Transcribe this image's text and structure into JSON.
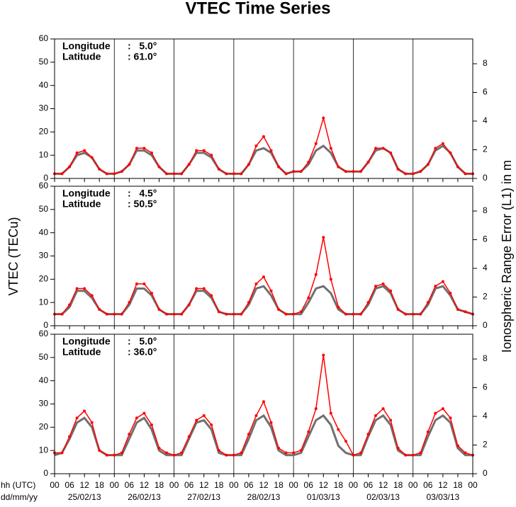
{
  "chart_data": [
    {
      "type": "line",
      "title": "VTEC Time Series",
      "annotations": [
        "Longitude",
        "Latitude"
      ],
      "annotation_values": [
        ":   5.0°",
        ": 61.0°"
      ],
      "xlim": [
        0,
        168
      ],
      "ylim": [
        0,
        60
      ],
      "yticks": [
        0,
        10,
        20,
        30,
        40,
        50,
        60
      ],
      "y2lim": [
        0,
        9.73
      ],
      "y2ticks": [
        0,
        2,
        4,
        6,
        8
      ],
      "xgrid": [
        24,
        48,
        72,
        96,
        120,
        144
      ],
      "x": [
        0,
        3,
        6,
        9,
        12,
        15,
        18,
        21,
        24,
        27,
        30,
        33,
        36,
        39,
        42,
        45,
        48,
        51,
        54,
        57,
        60,
        63,
        66,
        69,
        72,
        75,
        78,
        81,
        84,
        87,
        90,
        93,
        96,
        99,
        102,
        105,
        108,
        111,
        114,
        117,
        120,
        123,
        126,
        129,
        132,
        135,
        138,
        141,
        144,
        147,
        150,
        153,
        156,
        159,
        162,
        165,
        168
      ],
      "series": [
        {
          "color": "#707070",
          "values": [
            2,
            2,
            5,
            10,
            11,
            9,
            4,
            2,
            2,
            3,
            6,
            12,
            12,
            10,
            5,
            2,
            2,
            2,
            6,
            11,
            11,
            9,
            4,
            2,
            2,
            2,
            6,
            12,
            13,
            11,
            5,
            2,
            3,
            3,
            6,
            12,
            14,
            11,
            5,
            3,
            3,
            3,
            7,
            12,
            13,
            11,
            4,
            2,
            2,
            3,
            6,
            12,
            14,
            11,
            5,
            2,
            2
          ]
        },
        {
          "color": "#ff0000",
          "values": [
            2,
            2,
            5,
            11,
            12,
            9,
            4,
            2,
            2,
            3,
            6,
            13,
            13,
            11,
            5,
            2,
            2,
            2,
            6,
            12,
            12,
            10,
            4,
            2,
            2,
            2,
            6,
            14,
            18,
            12,
            5,
            2,
            3,
            3,
            7,
            15,
            26,
            13,
            5,
            3,
            3,
            3,
            7,
            13,
            13,
            11,
            4,
            2,
            2,
            3,
            6,
            13,
            15,
            11,
            5,
            2,
            2
          ]
        }
      ]
    },
    {
      "type": "line",
      "ylabel": "VTEC (TECu)",
      "y2label": "Ionospheric Range Error (L1) in m",
      "annotations": [
        "Longitude",
        "Latitude"
      ],
      "annotation_values": [
        ":   4.5°",
        ": 50.5°"
      ],
      "xlim": [
        0,
        168
      ],
      "ylim": [
        0,
        60
      ],
      "yticks": [
        0,
        10,
        20,
        30,
        40,
        50,
        60
      ],
      "y2lim": [
        0,
        9.73
      ],
      "y2ticks": [
        0,
        2,
        4,
        6,
        8
      ],
      "xgrid": [
        24,
        48,
        72,
        96,
        120,
        144
      ],
      "x": [
        0,
        3,
        6,
        9,
        12,
        15,
        18,
        21,
        24,
        27,
        30,
        33,
        36,
        39,
        42,
        45,
        48,
        51,
        54,
        57,
        60,
        63,
        66,
        69,
        72,
        75,
        78,
        81,
        84,
        87,
        90,
        93,
        96,
        99,
        102,
        105,
        108,
        111,
        114,
        117,
        120,
        123,
        126,
        129,
        132,
        135,
        138,
        141,
        144,
        147,
        150,
        153,
        156,
        159,
        162,
        165,
        168
      ],
      "series": [
        {
          "color": "#707070",
          "values": [
            5,
            5,
            8,
            15,
            15,
            12,
            7,
            5,
            5,
            5,
            9,
            16,
            16,
            13,
            7,
            5,
            5,
            5,
            9,
            15,
            15,
            12,
            6,
            5,
            5,
            5,
            9,
            16,
            17,
            13,
            7,
            5,
            5,
            5,
            10,
            16,
            17,
            14,
            7,
            5,
            5,
            5,
            9,
            16,
            17,
            14,
            7,
            5,
            5,
            5,
            9,
            16,
            17,
            13,
            7,
            6,
            5
          ]
        },
        {
          "color": "#ff0000",
          "values": [
            5,
            5,
            9,
            16,
            16,
            13,
            7,
            5,
            5,
            5,
            10,
            18,
            18,
            14,
            7,
            5,
            5,
            5,
            9,
            16,
            16,
            13,
            6,
            5,
            5,
            5,
            10,
            18,
            21,
            15,
            7,
            5,
            5,
            6,
            12,
            22,
            38,
            20,
            8,
            5,
            5,
            5,
            10,
            17,
            18,
            15,
            7,
            5,
            5,
            5,
            10,
            17,
            19,
            14,
            7,
            6,
            5
          ]
        }
      ]
    },
    {
      "type": "line",
      "annotations": [
        "Longitude",
        "Latitude"
      ],
      "annotation_values": [
        ":   5.0°",
        ": 36.0°"
      ],
      "xlim": [
        0,
        168
      ],
      "ylim": [
        0,
        60
      ],
      "yticks": [
        0,
        10,
        20,
        30,
        40,
        50,
        60
      ],
      "y2lim": [
        0,
        9.73
      ],
      "y2ticks": [
        0,
        2,
        4,
        6,
        8
      ],
      "xgrid": [
        24,
        48,
        72,
        96,
        120,
        144
      ],
      "xlabel": "hh (UTC)",
      "xlabel2": "dd/mm/yy",
      "xticks": [
        {
          "value": 0,
          "label": "00"
        },
        {
          "value": 6,
          "label": "06"
        },
        {
          "value": 12,
          "label": "12"
        },
        {
          "value": 18,
          "label": "18"
        },
        {
          "value": 24,
          "label": "00"
        },
        {
          "value": 30,
          "label": "06"
        },
        {
          "value": 36,
          "label": "12"
        },
        {
          "value": 42,
          "label": "18"
        },
        {
          "value": 48,
          "label": "00"
        },
        {
          "value": 54,
          "label": "06"
        },
        {
          "value": 60,
          "label": "12"
        },
        {
          "value": 66,
          "label": "18"
        },
        {
          "value": 72,
          "label": "00"
        },
        {
          "value": 78,
          "label": "06"
        },
        {
          "value": 84,
          "label": "12"
        },
        {
          "value": 90,
          "label": "18"
        },
        {
          "value": 96,
          "label": "00"
        },
        {
          "value": 102,
          "label": "06"
        },
        {
          "value": 108,
          "label": "12"
        },
        {
          "value": 114,
          "label": "18"
        },
        {
          "value": 120,
          "label": "00"
        },
        {
          "value": 126,
          "label": "06"
        },
        {
          "value": 132,
          "label": "12"
        },
        {
          "value": 138,
          "label": "18"
        },
        {
          "value": 144,
          "label": "00"
        },
        {
          "value": 150,
          "label": "06"
        },
        {
          "value": 156,
          "label": "12"
        },
        {
          "value": 162,
          "label": "18"
        },
        {
          "value": 168,
          "label": "00"
        }
      ],
      "xday_labels": [
        {
          "value": 12,
          "label": "25/02/13"
        },
        {
          "value": 36,
          "label": "26/02/13"
        },
        {
          "value": 60,
          "label": "27/02/13"
        },
        {
          "value": 84,
          "label": "28/02/13"
        },
        {
          "value": 108,
          "label": "01/03/13"
        },
        {
          "value": 132,
          "label": "02/03/13"
        },
        {
          "value": 156,
          "label": "03/03/13"
        }
      ],
      "x": [
        0,
        3,
        6,
        9,
        12,
        15,
        18,
        21,
        24,
        27,
        30,
        33,
        36,
        39,
        42,
        45,
        48,
        51,
        54,
        57,
        60,
        63,
        66,
        69,
        72,
        75,
        78,
        81,
        84,
        87,
        90,
        93,
        96,
        99,
        102,
        105,
        108,
        111,
        114,
        117,
        120,
        123,
        126,
        129,
        132,
        135,
        138,
        141,
        144,
        147,
        150,
        153,
        156,
        159,
        162,
        165,
        168
      ],
      "series": [
        {
          "color": "#707070",
          "values": [
            8,
            9,
            15,
            22,
            24,
            20,
            10,
            8,
            8,
            8,
            15,
            22,
            24,
            19,
            10,
            8,
            8,
            8,
            15,
            22,
            23,
            19,
            9,
            8,
            8,
            8,
            15,
            23,
            25,
            20,
            10,
            8,
            8,
            9,
            16,
            23,
            25,
            21,
            12,
            9,
            8,
            8,
            16,
            23,
            25,
            21,
            10,
            8,
            8,
            8,
            16,
            23,
            25,
            22,
            11,
            8,
            8
          ]
        },
        {
          "color": "#ff0000",
          "values": [
            9,
            9,
            16,
            24,
            27,
            22,
            10,
            8,
            8,
            9,
            17,
            24,
            26,
            21,
            11,
            9,
            8,
            9,
            16,
            23,
            25,
            21,
            10,
            8,
            8,
            9,
            17,
            25,
            31,
            22,
            11,
            9,
            9,
            10,
            18,
            28,
            51,
            26,
            19,
            14,
            8,
            9,
            17,
            25,
            28,
            23,
            11,
            8,
            8,
            9,
            18,
            26,
            28,
            24,
            12,
            9,
            8
          ]
        }
      ]
    }
  ]
}
